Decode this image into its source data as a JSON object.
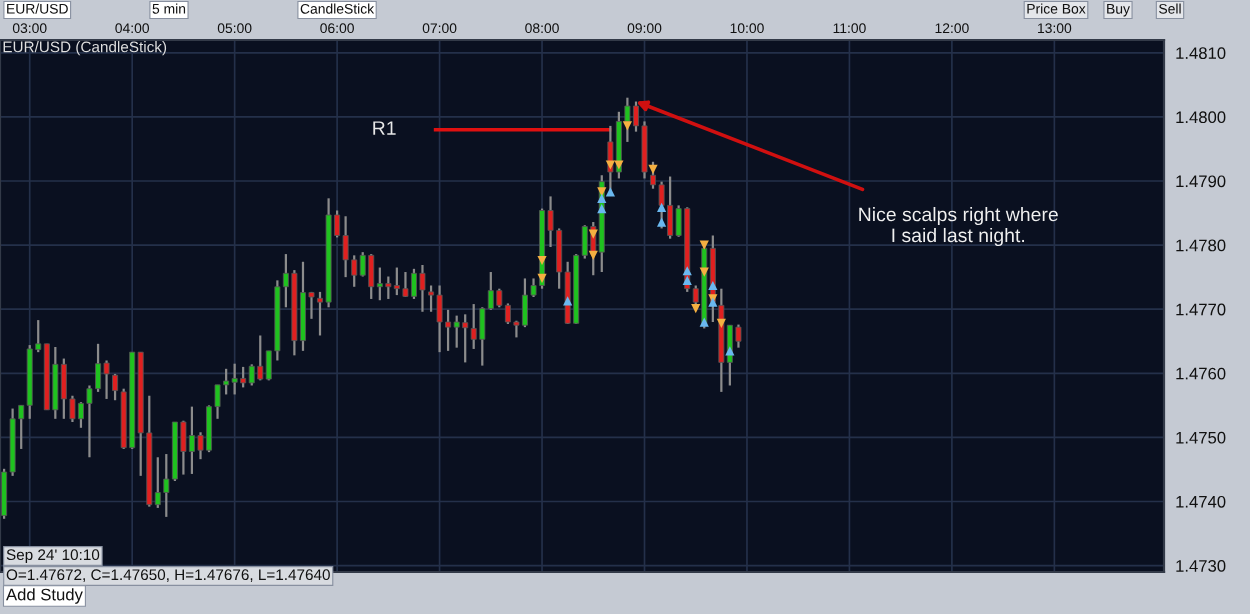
{
  "chart_data": {
    "type": "candlestick",
    "title": "EUR/USD (CandleStick)",
    "xlim": [
      2.71,
      14.07
    ],
    "ylim": [
      1.4729,
      1.4812
    ],
    "xticks": [
      {
        "value": 3,
        "label": "03:00"
      },
      {
        "value": 4,
        "label": "04:00"
      },
      {
        "value": 5,
        "label": "05:00"
      },
      {
        "value": 6,
        "label": "06:00"
      },
      {
        "value": 7,
        "label": "07:00"
      },
      {
        "value": 8,
        "label": "08:00"
      },
      {
        "value": 9,
        "label": "09:00"
      },
      {
        "value": 10,
        "label": "10:00"
      },
      {
        "value": 11,
        "label": "11:00"
      },
      {
        "value": 12,
        "label": "12:00"
      },
      {
        "value": 13,
        "label": "13:00"
      }
    ],
    "yticks": [
      {
        "value": 1.473,
        "label": "1.4730"
      },
      {
        "value": 1.474,
        "label": "1.4740"
      },
      {
        "value": 1.475,
        "label": "1.4750"
      },
      {
        "value": 1.476,
        "label": "1.4760"
      },
      {
        "value": 1.477,
        "label": "1.4770"
      },
      {
        "value": 1.478,
        "label": "1.4780"
      },
      {
        "value": 1.479,
        "label": "1.4790"
      },
      {
        "value": 1.48,
        "label": "1.4800"
      },
      {
        "value": 1.481,
        "label": "1.4810"
      }
    ],
    "grid": true,
    "legend": false,
    "series": [
      {
        "type": "candlestick",
        "colors": [
          "#1fc21f",
          "#1fc21f",
          "#1fc21f",
          "#1fc21f",
          "#1fc21f",
          "#e02020",
          "#1fc21f",
          "#e02020",
          "#e02020",
          "#1fc21f",
          "#1fc21f",
          "#1fc21f",
          "#e02020",
          "#e02020",
          "#e02020",
          "#1fc21f",
          "#e02020",
          "#e02020",
          "#1fc21f",
          "#1fc21f",
          "#1fc21f",
          "#e02020",
          "#1fc21f",
          "#e02020",
          "#1fc21f",
          "#1fc21f",
          "#1fc21f",
          "#1fc21f",
          "#e02020",
          "#1fc21f",
          "#e02020",
          "#1fc21f",
          "#1fc21f",
          "#1fc21f",
          "#e02020",
          "#1fc21f",
          "#e02020",
          "#e02020",
          "#1fc21f",
          "#e02020",
          "#e02020",
          "#e02020",
          "#1fc21f",
          "#e02020",
          "#1fc21f",
          "#e02020",
          "#e02020",
          "#e02020",
          "#1fc21f",
          "#e02020",
          "#e02020",
          "#e02020",
          "#e02020",
          "#1fc21f",
          "#e02020",
          "#e02020",
          "#1fc21f",
          "#1fc21f",
          "#e02020",
          "#e02020",
          "#e02020",
          "#1fc21f",
          "#1fc21f",
          "#1fc21f",
          "#e02020",
          "#e02020",
          "#e02020",
          "#1fc21f",
          "#1fc21f",
          "#e02020",
          "#1fc21f",
          "#e02020",
          "#1fc21f",
          "#1fc21f",
          "#e02020",
          "#e02020",
          "#e02020",
          "#e02020",
          "#e02020",
          "#1fc21f",
          "#e02020",
          "#e02020",
          "#1fc21f",
          "#e02020",
          "#e02020",
          "#1fc21f",
          "#e02020"
        ],
        "x": [
          2.75,
          2.833,
          2.917,
          3,
          3.083,
          3.167,
          3.25,
          3.333,
          3.417,
          3.5,
          3.583,
          3.667,
          3.75,
          3.833,
          3.917,
          4,
          4.083,
          4.167,
          4.25,
          4.333,
          4.417,
          4.5,
          4.583,
          4.667,
          4.75,
          4.833,
          4.917,
          5,
          5.083,
          5.167,
          5.25,
          5.333,
          5.417,
          5.5,
          5.583,
          5.667,
          5.75,
          5.833,
          5.917,
          6,
          6.083,
          6.167,
          6.25,
          6.333,
          6.417,
          6.5,
          6.583,
          6.667,
          6.75,
          6.833,
          6.917,
          7,
          7.083,
          7.167,
          7.25,
          7.333,
          7.417,
          7.5,
          7.583,
          7.667,
          7.75,
          7.833,
          7.917,
          8,
          8.083,
          8.167,
          8.25,
          8.333,
          8.417,
          8.5,
          8.583,
          8.667,
          8.75,
          8.833,
          8.917,
          9,
          9.083,
          9.167,
          9.25,
          9.333,
          9.417,
          9.5,
          9.583,
          9.667,
          9.75,
          9.833,
          9.917
        ],
        "ohlc": [
          [
            1.47378,
            1.47451,
            1.47373,
            1.47446
          ],
          [
            1.47446,
            1.47545,
            1.4744,
            1.47529
          ],
          [
            1.47529,
            1.4755,
            1.47482,
            1.4755
          ],
          [
            1.4755,
            1.47644,
            1.47529,
            1.47638
          ],
          [
            1.47637,
            1.47683,
            1.47633,
            1.47646
          ],
          [
            1.47646,
            1.47646,
            1.47543,
            1.47543
          ],
          [
            1.47543,
            1.47641,
            1.47529,
            1.47614
          ],
          [
            1.47614,
            1.47623,
            1.47529,
            1.4756
          ],
          [
            1.4756,
            1.47565,
            1.47524,
            1.47529
          ],
          [
            1.47529,
            1.47555,
            1.47515,
            1.47553
          ],
          [
            1.47553,
            1.47581,
            1.47469,
            1.47576
          ],
          [
            1.47576,
            1.47646,
            1.47571,
            1.47615
          ],
          [
            1.47616,
            1.4762,
            1.4756,
            1.47599
          ],
          [
            1.47597,
            1.47599,
            1.47558,
            1.47573
          ],
          [
            1.47571,
            1.47576,
            1.47482,
            1.47484
          ],
          [
            1.47484,
            1.47633,
            1.47482,
            1.47633
          ],
          [
            1.47633,
            1.47633,
            1.4744,
            1.47507
          ],
          [
            1.47507,
            1.47565,
            1.47392,
            1.47395
          ],
          [
            1.47395,
            1.47469,
            1.4739,
            1.47414
          ],
          [
            1.47414,
            1.47474,
            1.47376,
            1.47435
          ],
          [
            1.47435,
            1.47524,
            1.47432,
            1.47524
          ],
          [
            1.47524,
            1.47526,
            1.47442,
            1.47478
          ],
          [
            1.47478,
            1.47548,
            1.47443,
            1.47503
          ],
          [
            1.47503,
            1.47508,
            1.47466,
            1.4748
          ],
          [
            1.4748,
            1.4755,
            1.47477,
            1.47548
          ],
          [
            1.47548,
            1.47582,
            1.47529,
            1.47582
          ],
          [
            1.47582,
            1.47607,
            1.47567,
            1.47588
          ],
          [
            1.47586,
            1.47615,
            1.47567,
            1.47592
          ],
          [
            1.47592,
            1.4761,
            1.47578,
            1.47585
          ],
          [
            1.47585,
            1.47614,
            1.47581,
            1.47611
          ],
          [
            1.47611,
            1.47659,
            1.47589,
            1.47591
          ],
          [
            1.47591,
            1.47635,
            1.47589,
            1.47635
          ],
          [
            1.47635,
            1.47745,
            1.4762,
            1.47735
          ],
          [
            1.47735,
            1.47786,
            1.47703,
            1.47756
          ],
          [
            1.47756,
            1.47761,
            1.47628,
            1.47651
          ],
          [
            1.47651,
            1.47774,
            1.47635,
            1.47726
          ],
          [
            1.47726,
            1.47727,
            1.47685,
            1.47719
          ],
          [
            1.47717,
            1.47727,
            1.47659,
            1.47711
          ],
          [
            1.47711,
            1.47873,
            1.47703,
            1.47847
          ],
          [
            1.47847,
            1.47854,
            1.47812,
            1.47815
          ],
          [
            1.47815,
            1.47845,
            1.4775,
            1.47777
          ],
          [
            1.47777,
            1.47784,
            1.47735,
            1.47753
          ],
          [
            1.47753,
            1.47789,
            1.47751,
            1.47784
          ],
          [
            1.47784,
            1.47786,
            1.47716,
            1.47735
          ],
          [
            1.47735,
            1.47765,
            1.47714,
            1.4774
          ],
          [
            1.4774,
            1.47751,
            1.47716,
            1.47735
          ],
          [
            1.47737,
            1.47765,
            1.47722,
            1.47732
          ],
          [
            1.47732,
            1.47758,
            1.47719,
            1.4772
          ],
          [
            1.4772,
            1.47763,
            1.47716,
            1.47756
          ],
          [
            1.47756,
            1.47769,
            1.47696,
            1.4773
          ],
          [
            1.47727,
            1.47737,
            1.47696,
            1.47722
          ],
          [
            1.47722,
            1.47737,
            1.47633,
            1.4768
          ],
          [
            1.4768,
            1.47699,
            1.47635,
            1.47672
          ],
          [
            1.47672,
            1.4769,
            1.4764,
            1.4768
          ],
          [
            1.47679,
            1.47692,
            1.47617,
            1.47671
          ],
          [
            1.4767,
            1.47708,
            1.47638,
            1.47653
          ],
          [
            1.47653,
            1.47703,
            1.47612,
            1.47701
          ],
          [
            1.47701,
            1.47758,
            1.47699,
            1.47729
          ],
          [
            1.47729,
            1.47732,
            1.47703,
            1.47706
          ],
          [
            1.47706,
            1.47709,
            1.47677,
            1.4768
          ],
          [
            1.4768,
            1.47682,
            1.47656,
            1.47675
          ],
          [
            1.47675,
            1.47748,
            1.47672,
            1.47722
          ],
          [
            1.47722,
            1.47748,
            1.47719,
            1.47737
          ],
          [
            1.47737,
            1.47857,
            1.47732,
            1.47854
          ],
          [
            1.47854,
            1.47876,
            1.47797,
            1.47823
          ],
          [
            1.47823,
            1.47826,
            1.47732,
            1.47758
          ],
          [
            1.47758,
            1.47774,
            1.47677,
            1.47678
          ],
          [
            1.47678,
            1.47786,
            1.47677,
            1.47784
          ],
          [
            1.47784,
            1.47831,
            1.47779,
            1.47829
          ],
          [
            1.47829,
            1.47836,
            1.47753,
            1.47789
          ],
          [
            1.47789,
            1.47909,
            1.47758,
            1.47899
          ],
          [
            1.47961,
            1.47986,
            1.47883,
            1.47914
          ],
          [
            1.47914,
            1.48008,
            1.47904,
            1.47993
          ],
          [
            1.47993,
            1.4803,
            1.47961,
            1.48017
          ],
          [
            1.48017,
            1.48024,
            1.47977,
            1.47986
          ],
          [
            1.47986,
            1.47993,
            1.47904,
            1.47914
          ],
          [
            1.47909,
            1.4793,
            1.47888,
            1.47894
          ],
          [
            1.47894,
            1.47899,
            1.47826,
            1.47862
          ],
          [
            1.47862,
            1.47907,
            1.4781,
            1.47815
          ],
          [
            1.47815,
            1.47862,
            1.47813,
            1.47857
          ],
          [
            1.47857,
            1.47859,
            1.47727,
            1.47732
          ],
          [
            1.47732,
            1.47737,
            1.47706,
            1.47711
          ],
          [
            1.47675,
            1.478,
            1.4767,
            1.47795
          ],
          [
            1.47795,
            1.47815,
            1.4768,
            1.47711
          ],
          [
            1.47706,
            1.47732,
            1.47571,
            1.47617
          ],
          [
            1.47617,
            1.47675,
            1.47581,
            1.47675
          ],
          [
            1.47672,
            1.47676,
            1.4764,
            1.4765
          ]
        ]
      },
      {
        "type": "scatter",
        "marker": "triangle_down",
        "color": "#f5b041",
        "x": [
          8,
          8,
          8.5,
          8.5,
          8.583,
          8.667,
          8.75,
          8.833,
          9.083,
          9.5,
          9.583,
          9.583,
          9.667,
          9.75
        ],
        "values": [
          1.47776,
          1.47748,
          1.47817,
          1.47784,
          1.47883,
          1.47925,
          1.47925,
          1.47986,
          1.47918,
          1.47701,
          1.478,
          1.47758,
          1.47716,
          1.47678
        ]
      },
      {
        "type": "scatter",
        "marker": "triangle",
        "color": "#6ab8f0",
        "x": [
          8.25,
          8.583,
          8.583,
          8.667,
          9.167,
          9.167,
          9.417,
          9.417,
          9.583,
          9.667,
          9.667,
          9.833
        ],
        "values": [
          1.47713,
          1.47873,
          1.47857,
          1.47883,
          1.47859,
          1.47836,
          1.4776,
          1.47745,
          1.4768,
          1.47737,
          1.47711,
          1.47635
        ]
      },
      {
        "type": "line",
        "color": "#e01010",
        "x": [
          6.96,
          8.66
        ],
        "values": [
          1.4798,
          1.4798
        ]
      }
    ],
    "annotations": [
      {
        "text": "R1",
        "x": 6.96,
        "y": 1.4798
      },
      {
        "text": "Nice scalps right where\nI said last night.",
        "x": 8.917,
        "y": 1.48024
      },
      "Sep 24' 10:10",
      "O=1.47672, C=1.47650, H=1.47676, L=1.47640",
      "EUR/USD",
      "5 min",
      "CandleStick",
      "Price Box",
      "Buy",
      "Sell",
      "Add Study"
    ]
  }
}
